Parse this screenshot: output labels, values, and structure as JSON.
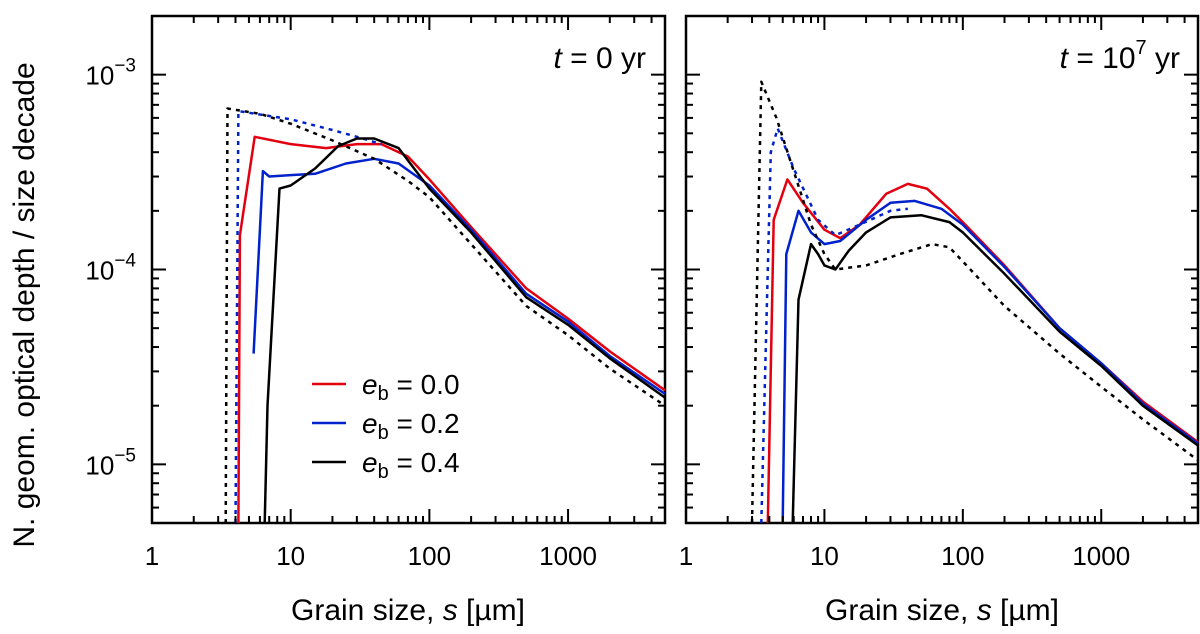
{
  "chart_data": {
    "type": "line",
    "ylabel": "N. geom. optical depth / size decade",
    "xscale": "log",
    "yscale": "log",
    "xlim": [
      1,
      5000
    ],
    "ylim": [
      5e-06,
      0.002
    ],
    "x_tick_labels": [
      "1",
      "10",
      "100",
      "1000"
    ],
    "y_tick_labels": [
      {
        "base": "10",
        "exp": "−3"
      },
      {
        "base": "10",
        "exp": "−4"
      },
      {
        "base": "10",
        "exp": "−5"
      }
    ],
    "legend": {
      "placement": "lower-left of left panel",
      "entries": [
        {
          "symbol": "e",
          "subscript": "b",
          "value": " = 0.0",
          "color": "#e3000f"
        },
        {
          "symbol": "e",
          "subscript": "b",
          "value": " = 0.2",
          "color": "#0022cc"
        },
        {
          "symbol": "e",
          "subscript": "b",
          "value": " = 0.4",
          "color": "#000000"
        }
      ]
    },
    "panels": [
      {
        "title": {
          "prefix": "t",
          "text": " = 0 yr",
          "exp": ""
        },
        "xlabel": {
          "prefix": "Grain size, ",
          "italic": "s",
          "suffix": " [µm]"
        },
        "series": [
          {
            "name": "e_b = 0.0",
            "color": "#e3000f",
            "style": "solid",
            "points": [
              [
                4.2,
                5e-06
              ],
              [
                4.3,
                0.00015
              ],
              [
                5.5,
                0.00048
              ],
              [
                10,
                0.00044
              ],
              [
                18,
                0.00042
              ],
              [
                30,
                0.00044
              ],
              [
                45,
                0.00044
              ],
              [
                70,
                0.00038
              ],
              [
                100,
                0.00029
              ],
              [
                200,
                0.000165
              ],
              [
                500,
                8e-05
              ],
              [
                1000,
                5.6e-05
              ],
              [
                2000,
                3.8e-05
              ],
              [
                5000,
                2.4e-05
              ]
            ]
          },
          {
            "name": "e_b = 0.2 (dashed)",
            "color": "#0022cc",
            "style": "dashed",
            "points": [
              [
                4.0,
                5e-06
              ],
              [
                4.2,
                0.00065
              ],
              [
                10,
                0.00059
              ],
              [
                20,
                0.00052
              ],
              [
                30,
                0.00048
              ],
              [
                45,
                0.00044
              ]
            ]
          },
          {
            "name": "e_b = 0.2",
            "color": "#0022cc",
            "style": "solid",
            "points": [
              [
                5.4,
                3.7e-05
              ],
              [
                6.3,
                0.00032
              ],
              [
                7,
                0.0003
              ],
              [
                10,
                0.000305
              ],
              [
                15,
                0.00031
              ],
              [
                25,
                0.00035
              ],
              [
                40,
                0.00037
              ],
              [
                60,
                0.00035
              ],
              [
                100,
                0.00027
              ],
              [
                200,
                0.00016
              ],
              [
                500,
                7.5e-05
              ],
              [
                1000,
                5.4e-05
              ],
              [
                2000,
                3.6e-05
              ],
              [
                5000,
                2.3e-05
              ]
            ]
          },
          {
            "name": "e_b = 0.4",
            "color": "#000000",
            "style": "solid",
            "points": [
              [
                6.5,
                5e-06
              ],
              [
                6.8,
                2e-05
              ],
              [
                8.3,
                0.00026
              ],
              [
                10,
                0.00027
              ],
              [
                15,
                0.00033
              ],
              [
                22,
                0.00043
              ],
              [
                30,
                0.00047
              ],
              [
                40,
                0.00047
              ],
              [
                60,
                0.00042
              ],
              [
                100,
                0.00026
              ],
              [
                200,
                0.000155
              ],
              [
                500,
                7.2e-05
              ],
              [
                1000,
                5.2e-05
              ],
              [
                2000,
                3.5e-05
              ],
              [
                5000,
                2.2e-05
              ]
            ]
          },
          {
            "name": "e_b = 0.4 (dashed)",
            "color": "#000000",
            "style": "dashed",
            "points": [
              [
                3.4,
                5e-06
              ],
              [
                3.5,
                0.00067
              ],
              [
                6,
                0.00063
              ],
              [
                10,
                0.00056
              ],
              [
                20,
                0.00046
              ],
              [
                40,
                0.00037
              ],
              [
                70,
                0.000285
              ],
              [
                100,
                0.000235
              ],
              [
                200,
                0.000135
              ],
              [
                500,
                6.5e-05
              ],
              [
                1000,
                4.6e-05
              ],
              [
                2000,
                3.1e-05
              ],
              [
                5000,
                2e-05
              ]
            ]
          }
        ]
      },
      {
        "title": {
          "prefix": "t",
          "text": " = 10",
          "exp": "7",
          "suffix": " yr"
        },
        "xlabel": {
          "prefix": "Grain size, ",
          "italic": "s",
          "suffix": " [µm]"
        },
        "series": [
          {
            "name": "e_b = 0.0",
            "color": "#e3000f",
            "style": "solid",
            "points": [
              [
                3.9,
                5e-06
              ],
              [
                4.3,
                0.00018
              ],
              [
                5.4,
                0.00029
              ],
              [
                7,
                0.00022
              ],
              [
                10,
                0.00016
              ],
              [
                13,
                0.000145
              ],
              [
                18,
                0.00017
              ],
              [
                28,
                0.000245
              ],
              [
                40,
                0.000275
              ],
              [
                55,
                0.00026
              ],
              [
                80,
                0.000205
              ],
              [
                100,
                0.000175
              ],
              [
                200,
                0.000105
              ],
              [
                500,
                5e-05
              ],
              [
                1000,
                3.3e-05
              ],
              [
                2000,
                2.1e-05
              ],
              [
                5000,
                1.3e-05
              ]
            ]
          },
          {
            "name": "e_b = 0.2 (dashed)",
            "color": "#0022cc",
            "style": "dashed",
            "points": [
              [
                3.5,
                5e-06
              ],
              [
                4.1,
                0.0004
              ],
              [
                4.6,
                0.00053
              ],
              [
                6,
                0.00033
              ],
              [
                9,
                0.00018
              ],
              [
                12,
                0.00015
              ],
              [
                18,
                0.00017
              ],
              [
                30,
                0.0002
              ],
              [
                40,
                0.000205
              ]
            ]
          },
          {
            "name": "e_b = 0.2",
            "color": "#0022cc",
            "style": "solid",
            "points": [
              [
                5.0,
                5e-06
              ],
              [
                5.3,
                0.00012
              ],
              [
                6.5,
                0.0002
              ],
              [
                8,
                0.000155
              ],
              [
                10,
                0.000135
              ],
              [
                13,
                0.00014
              ],
              [
                20,
                0.00018
              ],
              [
                30,
                0.00022
              ],
              [
                45,
                0.000225
              ],
              [
                70,
                0.000205
              ],
              [
                100,
                0.00017
              ],
              [
                200,
                0.000103
              ],
              [
                500,
                5e-05
              ],
              [
                1000,
                3.3e-05
              ],
              [
                2000,
                2.05e-05
              ],
              [
                5000,
                1.28e-05
              ]
            ]
          },
          {
            "name": "e_b = 0.4",
            "color": "#000000",
            "style": "solid",
            "points": [
              [
                5.9,
                5e-06
              ],
              [
                6.5,
                7e-05
              ],
              [
                8,
                0.000135
              ],
              [
                9,
                0.00012
              ],
              [
                10,
                0.000105
              ],
              [
                12,
                0.0001
              ],
              [
                15,
                0.000125
              ],
              [
                20,
                0.000155
              ],
              [
                30,
                0.000185
              ],
              [
                50,
                0.00019
              ],
              [
                80,
                0.000175
              ],
              [
                100,
                0.000155
              ],
              [
                200,
                9.5e-05
              ],
              [
                500,
                4.8e-05
              ],
              [
                1000,
                3.2e-05
              ],
              [
                2000,
                2e-05
              ],
              [
                5000,
                1.25e-05
              ]
            ]
          },
          {
            "name": "e_b = 0.4 (dashed)",
            "color": "#000000",
            "style": "dashed",
            "points": [
              [
                3.0,
                5e-06
              ],
              [
                3.5,
                0.00092
              ],
              [
                4.5,
                0.0006
              ],
              [
                6,
                0.00032
              ],
              [
                8,
                0.00017
              ],
              [
                10,
                0.00012
              ],
              [
                12,
                0.0001
              ],
              [
                20,
                0.000105
              ],
              [
                35,
                0.00012
              ],
              [
                60,
                0.000135
              ],
              [
                80,
                0.00013
              ],
              [
                100,
                0.00011
              ],
              [
                200,
                6.5e-05
              ],
              [
                500,
                3.7e-05
              ],
              [
                1000,
                2.5e-05
              ],
              [
                2000,
                1.7e-05
              ],
              [
                5000,
                1.05e-05
              ]
            ]
          }
        ]
      }
    ]
  }
}
